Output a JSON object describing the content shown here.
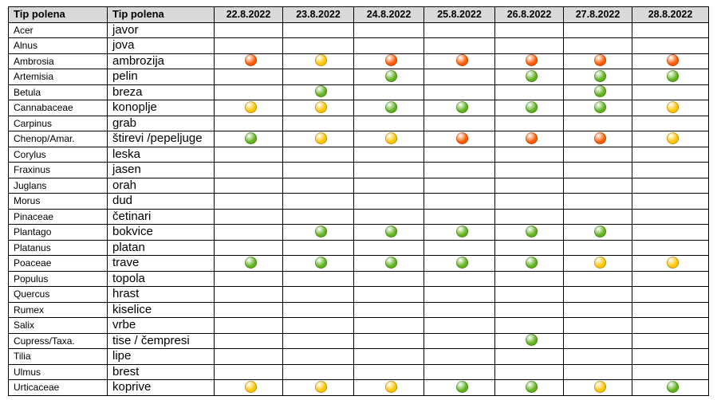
{
  "header": {
    "latin": "Tip polena",
    "local": "Tip polena",
    "dates": [
      "22.8.2022",
      "23.8.2022",
      "24.8.2022",
      "25.8.2022",
      "26.8.2022",
      "27.8.2022",
      "28.8.2022"
    ]
  },
  "level_colors": {
    "green": "#5fb31c",
    "yellow": "#ffc400",
    "orange": "#ff5a00"
  },
  "rows": [
    {
      "latin": "Acer",
      "local": "javor",
      "levels": [
        "",
        "",
        "",
        "",
        "",
        "",
        ""
      ]
    },
    {
      "latin": "Alnus",
      "local": "jova",
      "levels": [
        "",
        "",
        "",
        "",
        "",
        "",
        ""
      ]
    },
    {
      "latin": "Ambrosia",
      "local": "ambrozija",
      "levels": [
        "orange",
        "yellow",
        "orange",
        "orange",
        "orange",
        "orange",
        "orange"
      ]
    },
    {
      "latin": "Artemisia",
      "local": "pelin",
      "levels": [
        "",
        "",
        "green",
        "",
        "green",
        "green",
        "green"
      ]
    },
    {
      "latin": "Betula",
      "local": "breza",
      "levels": [
        "",
        "green",
        "",
        "",
        "",
        "green",
        ""
      ]
    },
    {
      "latin": "Cannabaceae",
      "local": "konoplje",
      "levels": [
        "yellow",
        "yellow",
        "green",
        "green",
        "green",
        "green",
        "yellow"
      ]
    },
    {
      "latin": "Carpinus",
      "local": "grab",
      "levels": [
        "",
        "",
        "",
        "",
        "",
        "",
        ""
      ]
    },
    {
      "latin": "Chenop/Amar.",
      "local": "štirevi /pepeljuge",
      "levels": [
        "green",
        "yellow",
        "yellow",
        "orange",
        "orange",
        "orange",
        "yellow"
      ]
    },
    {
      "latin": "Corylus",
      "local": "leska",
      "levels": [
        "",
        "",
        "",
        "",
        "",
        "",
        ""
      ]
    },
    {
      "latin": "Fraxinus",
      "local": "jasen",
      "levels": [
        "",
        "",
        "",
        "",
        "",
        "",
        ""
      ]
    },
    {
      "latin": "Juglans",
      "local": "orah",
      "levels": [
        "",
        "",
        "",
        "",
        "",
        "",
        ""
      ]
    },
    {
      "latin": "Morus",
      "local": "dud",
      "levels": [
        "",
        "",
        "",
        "",
        "",
        "",
        ""
      ]
    },
    {
      "latin": "Pinaceae",
      "local": "četinari",
      "levels": [
        "",
        "",
        "",
        "",
        "",
        "",
        ""
      ]
    },
    {
      "latin": "Plantago",
      "local": "bokvice",
      "levels": [
        "",
        "green",
        "green",
        "green",
        "green",
        "green",
        ""
      ]
    },
    {
      "latin": "Platanus",
      "local": "platan",
      "levels": [
        "",
        "",
        "",
        "",
        "",
        "",
        ""
      ]
    },
    {
      "latin": "Poaceae",
      "local": "trave",
      "levels": [
        "green",
        "green",
        "green",
        "green",
        "green",
        "yellow",
        "yellow"
      ]
    },
    {
      "latin": "Populus",
      "local": "topola",
      "levels": [
        "",
        "",
        "",
        "",
        "",
        "",
        ""
      ]
    },
    {
      "latin": "Quercus",
      "local": "hrast",
      "levels": [
        "",
        "",
        "",
        "",
        "",
        "",
        ""
      ]
    },
    {
      "latin": "Rumex",
      "local": "kiselice",
      "levels": [
        "",
        "",
        "",
        "",
        "",
        "",
        ""
      ]
    },
    {
      "latin": "Salix",
      "local": "vrbe",
      "levels": [
        "",
        "",
        "",
        "",
        "",
        "",
        ""
      ]
    },
    {
      "latin": "Cupress/Taxa.",
      "local": "tise / čempresi",
      "levels": [
        "",
        "",
        "",
        "",
        "green",
        "",
        ""
      ]
    },
    {
      "latin": "Tilia",
      "local": "lipe",
      "levels": [
        "",
        "",
        "",
        "",
        "",
        "",
        ""
      ]
    },
    {
      "latin": "Ulmus",
      "local": "brest",
      "levels": [
        "",
        "",
        "",
        "",
        "",
        "",
        ""
      ]
    },
    {
      "latin": "Urticaceae",
      "local": "koprive",
      "levels": [
        "yellow",
        "yellow",
        "yellow",
        "green",
        "green",
        "yellow",
        "green"
      ]
    }
  ]
}
